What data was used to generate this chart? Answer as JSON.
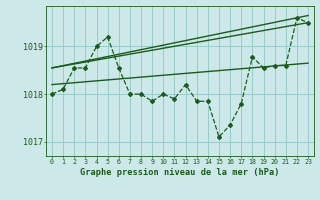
{
  "title": "Graphe pression niveau de la mer (hPa)",
  "background_color": "#cce8e8",
  "grid_color": "#99cccc",
  "line_color": "#1a5c1a",
  "xlim": [
    -0.5,
    23.5
  ],
  "ylim": [
    1016.7,
    1019.85
  ],
  "yticks": [
    1017,
    1018,
    1019
  ],
  "xtick_labels": [
    "0",
    "1",
    "2",
    "3",
    "4",
    "5",
    "6",
    "7",
    "8",
    "9",
    "10",
    "11",
    "12",
    "13",
    "14",
    "15",
    "16",
    "17",
    "18",
    "19",
    "20",
    "21",
    "22",
    "23"
  ],
  "main_x": [
    0,
    1,
    2,
    3,
    4,
    5,
    6,
    7,
    8,
    9,
    10,
    11,
    12,
    13,
    14,
    15,
    16,
    17,
    18,
    19,
    20,
    21,
    22,
    23
  ],
  "main_y": [
    1018.0,
    1018.1,
    1018.55,
    1018.55,
    1019.0,
    1019.2,
    1018.55,
    1018.0,
    1018.0,
    1017.85,
    1018.0,
    1017.9,
    1018.2,
    1017.85,
    1017.85,
    1017.1,
    1017.35,
    1017.8,
    1018.78,
    1018.55,
    1018.6,
    1018.6,
    1019.6,
    1019.5
  ],
  "trend1_x": [
    0,
    23
  ],
  "trend1_y": [
    1018.55,
    1019.65
  ],
  "trend2_x": [
    0,
    23
  ],
  "trend2_y": [
    1018.55,
    1019.5
  ],
  "trend3_x": [
    0,
    23
  ],
  "trend3_y": [
    1018.2,
    1018.65
  ]
}
